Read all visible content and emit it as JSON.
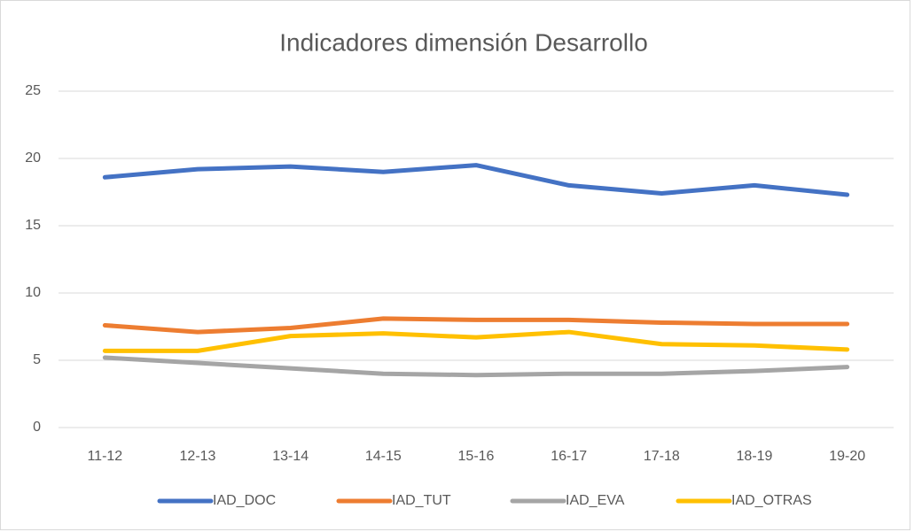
{
  "chart_data": {
    "type": "line",
    "title": "Indicadores dimensión Desarrollo",
    "categories": [
      "11-12",
      "12-13",
      "13-14",
      "14-15",
      "15-16",
      "16-17",
      "17-18",
      "18-19",
      "19-20"
    ],
    "series": [
      {
        "name": "IAD_DOC",
        "color": "#4472c4",
        "values": [
          18.6,
          19.2,
          19.4,
          19.0,
          19.5,
          18.0,
          17.4,
          18.0,
          17.3
        ]
      },
      {
        "name": "IAD_TUT",
        "color": "#ed7d31",
        "values": [
          7.6,
          7.1,
          7.4,
          8.1,
          8.0,
          8.0,
          7.8,
          7.7,
          7.7
        ]
      },
      {
        "name": "IAD_EVA",
        "color": "#a5a5a5",
        "values": [
          5.2,
          4.8,
          4.4,
          4.0,
          3.9,
          4.0,
          4.0,
          4.2,
          4.5
        ]
      },
      {
        "name": "IAD_OTRAS",
        "color": "#ffc000",
        "values": [
          5.7,
          5.7,
          6.8,
          7.0,
          6.7,
          7.1,
          6.2,
          6.1,
          5.8
        ]
      }
    ],
    "ylim": [
      0,
      25
    ],
    "yticks": [
      0,
      5,
      10,
      15,
      20,
      25
    ],
    "grid": true,
    "legend": "bottom"
  }
}
